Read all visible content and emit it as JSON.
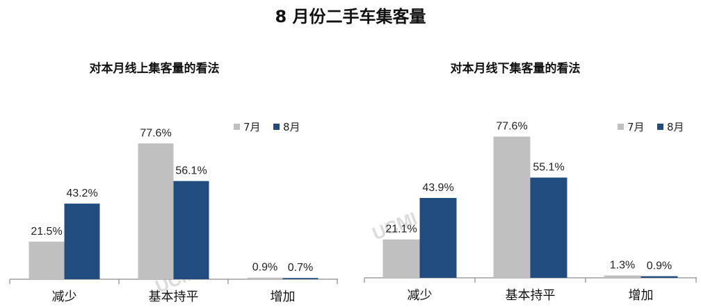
{
  "title": "8 月份二手车集客量",
  "watermark": "UCMI",
  "chart_data": [
    {
      "type": "bar",
      "title": "对本月线上集客量的看法",
      "categories": [
        "减少",
        "基本持平",
        "增加"
      ],
      "series": [
        {
          "name": "7月",
          "color": "#c0c0c0",
          "values": [
            21.5,
            77.6,
            0.9
          ],
          "labels": [
            "21.5%",
            "77.6%",
            "0.9%"
          ]
        },
        {
          "name": "8月",
          "color": "#214c80",
          "values": [
            43.2,
            56.1,
            0.7
          ],
          "labels": [
            "43.2%",
            "56.1%",
            "0.7%"
          ]
        }
      ],
      "ylim": [
        0,
        100
      ],
      "legend": "top-right",
      "grid": false
    },
    {
      "type": "bar",
      "title": "对本月线下集客量的看法",
      "categories": [
        "减少",
        "基本持平",
        "增加"
      ],
      "series": [
        {
          "name": "7月",
          "color": "#c0c0c0",
          "values": [
            21.1,
            77.6,
            1.3
          ],
          "labels": [
            "21.1%",
            "77.6%",
            "1.3%"
          ]
        },
        {
          "name": "8月",
          "color": "#214c80",
          "values": [
            43.9,
            55.1,
            0.9
          ],
          "labels": [
            "43.9%",
            "55.1%",
            "0.9%"
          ]
        }
      ],
      "ylim": [
        0,
        100
      ],
      "legend": "top-right",
      "grid": false
    }
  ]
}
